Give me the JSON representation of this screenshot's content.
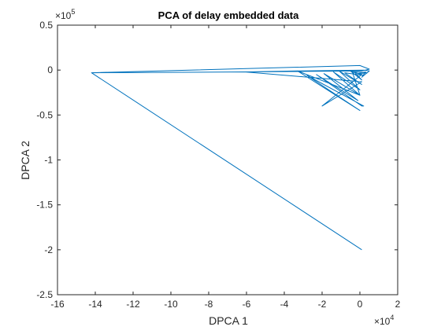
{
  "chart_data": {
    "type": "line",
    "title": "PCA of delay embedded data",
    "xlabel": "DPCA 1",
    "ylabel": "DPCA 2",
    "xlim": [
      -160000,
      20000
    ],
    "ylim": [
      -250000,
      50000
    ],
    "x_ticks": [
      -160000,
      -140000,
      -120000,
      -100000,
      -80000,
      -60000,
      -40000,
      -20000,
      0,
      20000
    ],
    "x_tick_labels": [
      "-16",
      "-14",
      "-12",
      "-10",
      "-8",
      "-6",
      "-4",
      "-2",
      "0",
      "2"
    ],
    "y_ticks": [
      50000,
      0,
      -50000,
      -100000,
      -150000,
      -200000,
      -250000
    ],
    "y_tick_labels": [
      "0.5",
      "0",
      "-0.5",
      "-1",
      "-1.5",
      "-2",
      "-2.5"
    ],
    "x_exponent": {
      "base": "×10",
      "power": "4"
    },
    "y_exponent": {
      "base": "×10",
      "power": "5"
    },
    "grid": false,
    "line_color": "#0072BD",
    "series": [
      {
        "x": [
          -142000,
          -61000,
          -33000,
          2000,
          5000,
          1000,
          3000,
          -1000,
          4000,
          -3000,
          1000,
          -5000,
          2000,
          -8000,
          1000,
          -11000,
          0,
          -14000,
          0,
          -19000,
          -1000,
          -23000,
          1000,
          2000,
          -28000,
          0,
          -33000,
          0,
          -4000,
          1000,
          -20000,
          1000,
          -61000,
          1000,
          5000,
          0,
          -142000,
          1000
        ],
        "y": [
          -3000,
          -2000,
          -1000,
          0,
          -1000,
          -8000,
          -2000,
          -4000,
          -3000,
          -2000,
          -11000,
          -1000,
          -6000,
          -3000,
          -16000,
          -1000,
          -22000,
          -2000,
          -28000,
          -4000,
          -34000,
          -5000,
          -40000,
          -40000,
          -6000,
          -45000,
          -1000,
          -28000,
          -2000,
          -5000,
          -40000,
          -13000,
          -2000,
          -1000,
          1000,
          5000,
          -3000,
          -200000
        ]
      }
    ]
  }
}
